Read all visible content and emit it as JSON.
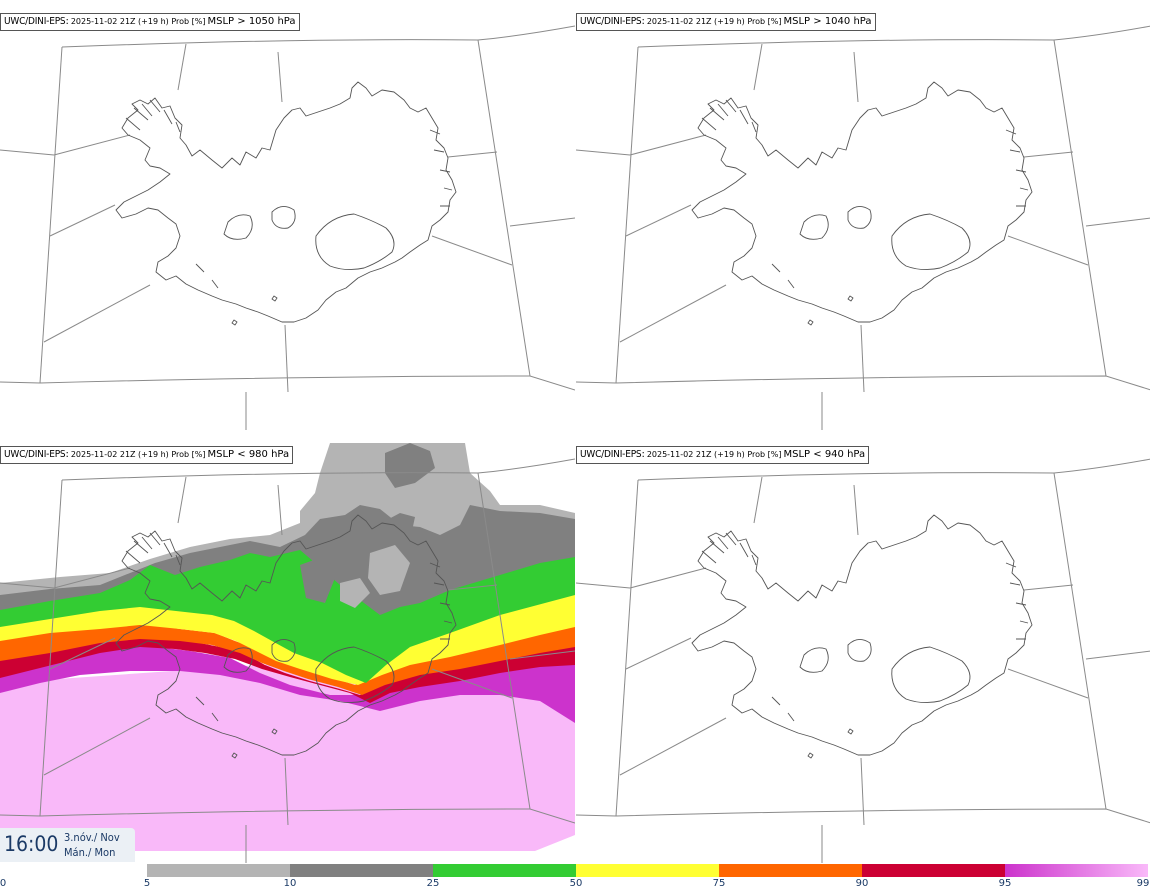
{
  "panels": [
    {
      "model": "UWC/DINI-EPS",
      "run": "2025-11-02 21Z (+19 h) Prob [%]",
      "variable": "MSLP > 1050 hPa"
    },
    {
      "model": "UWC/DINI-EPS",
      "run": "2025-11-02 21Z (+19 h) Prob [%]",
      "variable": "MSLP > 1040 hPa"
    },
    {
      "model": "UWC/DINI-EPS",
      "run": "2025-11-02 21Z (+19 h) Prob [%]",
      "variable": "MSLP < 980 hPa"
    },
    {
      "model": "UWC/DINI-EPS",
      "run": "2025-11-02 21Z (+19 h) Prob [%]",
      "variable": "MSLP < 940 hPa"
    }
  ],
  "valid_time": {
    "time": "16:00",
    "date_line1": "3.nóv./ Nov",
    "date_line2": "Mán./ Mon"
  },
  "colorbar": {
    "ticks": [
      "0",
      "5",
      "10",
      "25",
      "50",
      "75",
      "90",
      "95",
      "99"
    ],
    "bins": [
      {
        "from": 0,
        "to": 5,
        "color": "#ffffff"
      },
      {
        "from": 5,
        "to": 10,
        "color": "#b4b4b4"
      },
      {
        "from": 10,
        "to": 25,
        "color": "#808080"
      },
      {
        "from": 25,
        "to": 50,
        "color": "#33cc33"
      },
      {
        "from": 50,
        "to": 75,
        "color": "#ffff33"
      },
      {
        "from": 75,
        "to": 90,
        "color": "#ff6600"
      },
      {
        "from": 90,
        "to": 95,
        "color": "#cc0033"
      },
      {
        "from": 95,
        "to": 99,
        "color": "#cc33cc"
      },
      {
        "from": 99,
        "to": 100,
        "color": "#f9b9f9"
      }
    ]
  }
}
